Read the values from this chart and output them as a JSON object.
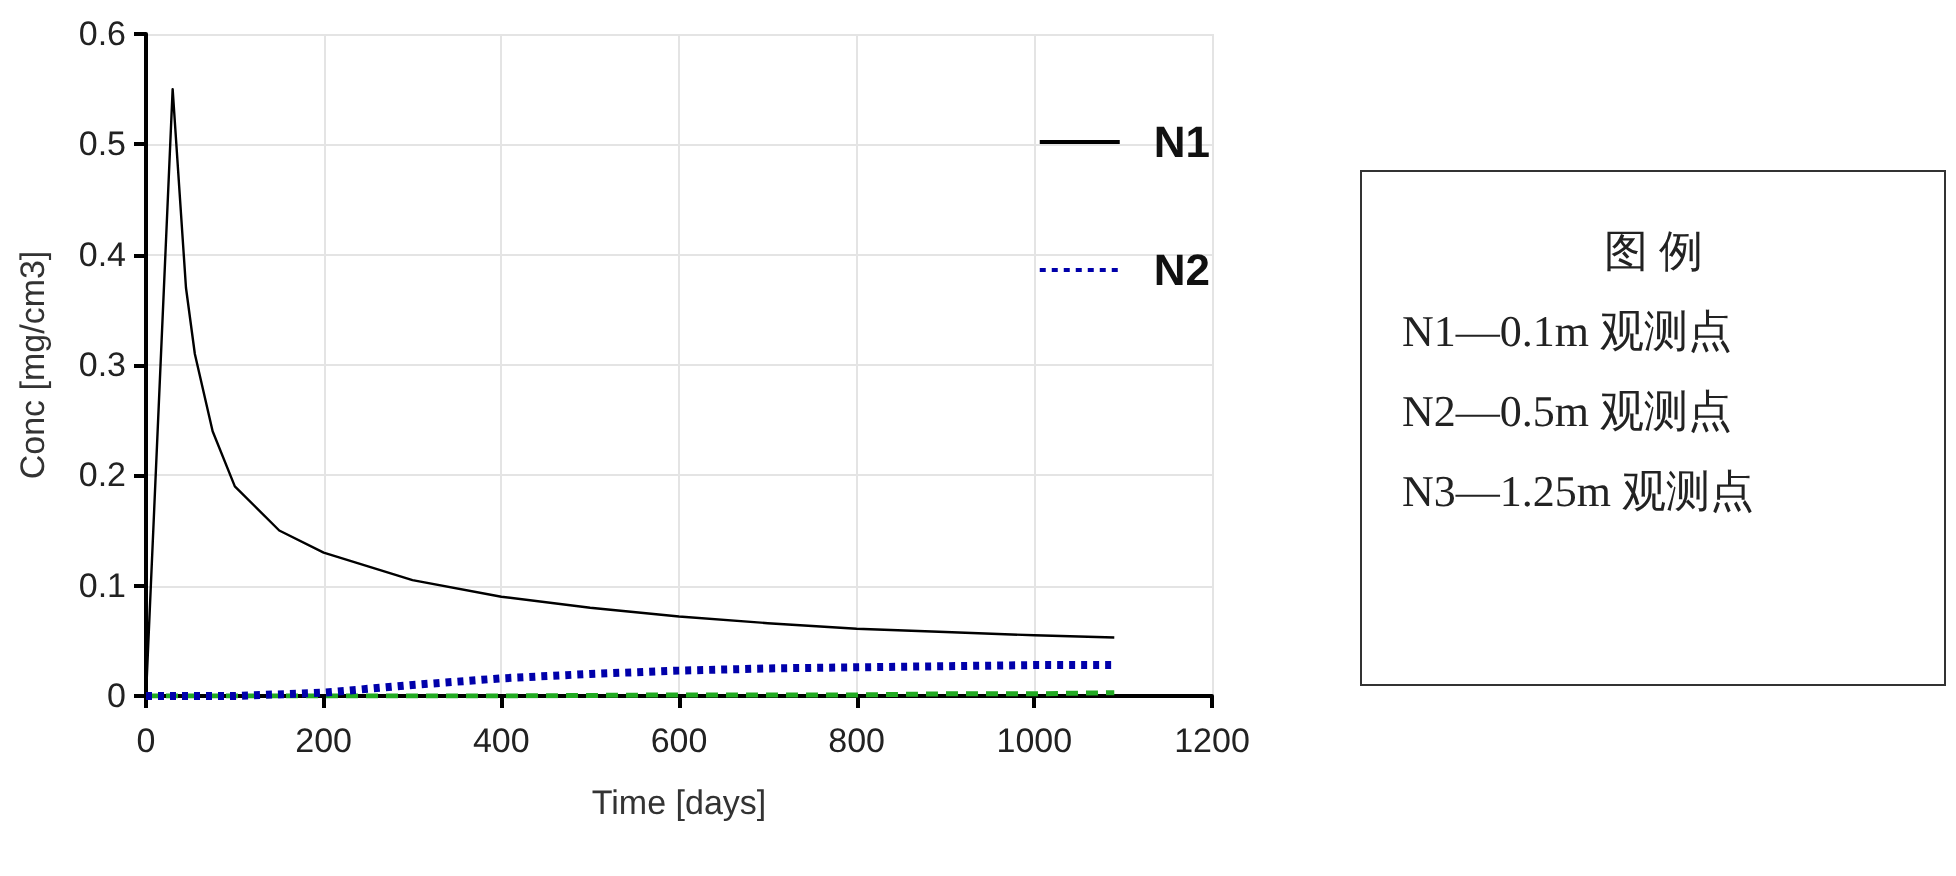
{
  "chart_data": {
    "type": "line",
    "xlabel": "Time [days]",
    "ylabel": "Conc [mg/cm3]",
    "xlim": [
      0,
      1200
    ],
    "xticks": [
      0,
      200,
      400,
      600,
      800,
      1000,
      1200
    ],
    "ylim": [
      0,
      0.6
    ],
    "yticks": [
      0,
      0.1,
      0.2,
      0.3,
      0.4,
      0.5,
      0.6
    ],
    "grid": true,
    "legend": "top right",
    "marker": "none",
    "series": [
      {
        "name": "N1",
        "color": "#000000",
        "line_style": "solid",
        "x": [
          0,
          30,
          45,
          55,
          75,
          100,
          150,
          200,
          300,
          400,
          500,
          600,
          700,
          800,
          900,
          1000,
          1090
        ],
        "values": [
          0,
          0.55,
          0.37,
          0.31,
          0.24,
          0.19,
          0.15,
          0.13,
          0.105,
          0.09,
          0.08,
          0.072,
          0.066,
          0.061,
          0.058,
          0.055,
          0.053
        ]
      },
      {
        "name": "N2",
        "color": "#0000aa",
        "line_style": "dotted",
        "x": [
          0,
          100,
          200,
          300,
          400,
          500,
          600,
          700,
          800,
          900,
          1000,
          1090
        ],
        "values": [
          0,
          0,
          0.003,
          0.01,
          0.016,
          0.02,
          0.023,
          0.025,
          0.026,
          0.027,
          0.028,
          0.028
        ]
      },
      {
        "color": "#22aa22",
        "line_style": "dashed",
        "x": [
          0,
          200,
          400,
          600,
          800,
          900,
          1000,
          1090
        ],
        "values": [
          0,
          0,
          0,
          0.001,
          0.001,
          0.002,
          0.002,
          0.003
        ]
      }
    ],
    "annotations": [
      "图 例",
      "N1—0.1m 观测点",
      "N2—0.5m 观测点",
      "N3—1.25m 观测点"
    ]
  }
}
